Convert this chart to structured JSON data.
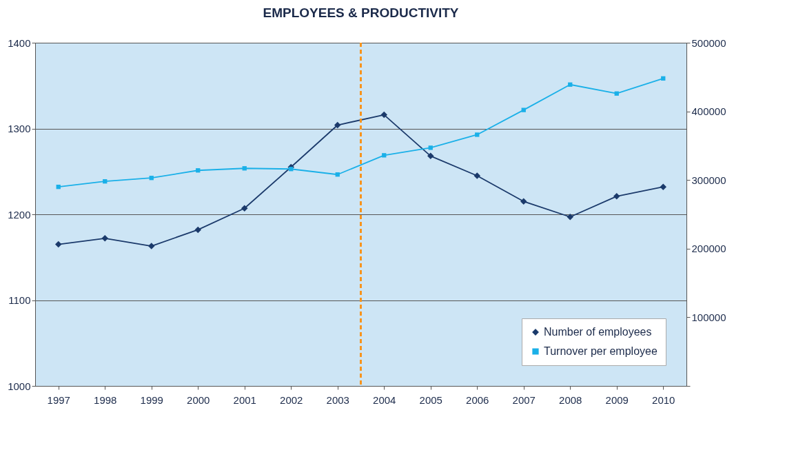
{
  "chart_data": {
    "type": "line",
    "title": "EMPLOYEES & PRODUCTIVITY",
    "x": [
      1997,
      1998,
      1999,
      2000,
      2001,
      2002,
      2003,
      2004,
      2005,
      2006,
      2007,
      2008,
      2009,
      2010
    ],
    "xlim": [
      1996.5,
      2010.5
    ],
    "xticks": [
      1997,
      1998,
      1999,
      2000,
      2001,
      2002,
      2003,
      2004,
      2005,
      2006,
      2007,
      2008,
      2009,
      2010
    ],
    "series": [
      {
        "name": "Number of employees",
        "color": "#1b3a6b",
        "marker": "diamond",
        "values": [
          1165,
          1172,
          1163,
          1182,
          1207,
          1255,
          1304,
          1316,
          1268,
          1245,
          1215,
          1197,
          1221,
          1232
        ]
      },
      {
        "name": "Turnover per employee",
        "color": "#1ab0e8",
        "marker": "square",
        "axis": "y2",
        "values": [
          290000,
          298000,
          303000,
          314000,
          317000,
          316000,
          308000,
          336000,
          347000,
          366000,
          402000,
          439000,
          426000,
          448000
        ]
      }
    ],
    "ylim": [
      1000,
      1400
    ],
    "yticks": [
      1000,
      1100,
      1200,
      1300,
      1400
    ],
    "y2lim": [
      0,
      500000
    ],
    "y2ticks": [
      {
        "value": 0,
        "label": null
      },
      100000,
      200000,
      300000,
      400000,
      500000
    ],
    "ref_lines": [
      {
        "axis": "x",
        "value": 2003.5,
        "color": "#f7941d",
        "line_style": "dashed"
      }
    ],
    "grid": "y",
    "legend": "bottom right"
  }
}
